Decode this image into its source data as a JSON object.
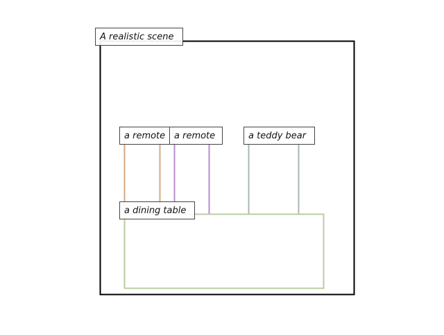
{
  "scene": {
    "title": "A realistic scene",
    "frame_color": "#000000"
  },
  "objects": [
    {
      "id": "remote-1",
      "label": "a remote",
      "color": "#d4a882"
    },
    {
      "id": "remote-2",
      "label": "a remote",
      "color": "#b88ccc"
    },
    {
      "id": "teddy-bear",
      "label": "a teddy bear",
      "color": "#a9b8b0"
    },
    {
      "id": "dining-table",
      "label": "a dining table",
      "color": "#b9cca0"
    }
  ]
}
